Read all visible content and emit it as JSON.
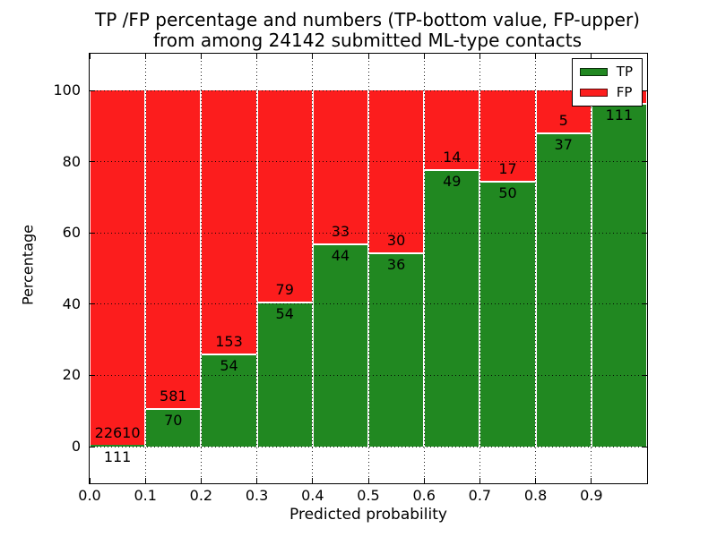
{
  "figure": {
    "title_line1": "TP /FP percentage and numbers (TP-bottom value, FP-upper)",
    "title_line2": "from among 24142 submitted ML-type contacts"
  },
  "chart_data": {
    "type": "bar",
    "stacked": true,
    "normalized_to_percent": true,
    "title": "TP /FP percentage and numbers (TP-bottom value, FP-upper) from among 24142 submitted ML-type contacts",
    "total_contacts_in_title": 24142,
    "xlabel": "Predicted probability",
    "ylabel": "Percentage",
    "bin_edges": [
      0.0,
      0.1,
      0.2,
      0.3,
      0.4,
      0.5,
      0.6,
      0.7,
      0.8,
      0.9,
      1.0
    ],
    "x_tick_labels": [
      "0.0",
      "0.1",
      "0.2",
      "0.3",
      "0.4",
      "0.5",
      "0.6",
      "0.7",
      "0.8",
      "0.9"
    ],
    "y_ticks": [
      0,
      20,
      40,
      60,
      80,
      100
    ],
    "y_tick_labels": [
      "0",
      "20",
      "40",
      "60",
      "80",
      "100"
    ],
    "xlim": [
      0.0,
      1.0
    ],
    "ylim_display": [
      -10.3,
      110.3
    ],
    "grid": "dotted",
    "series": [
      {
        "name": "TP",
        "counts": [
          111,
          70,
          54,
          54,
          44,
          36,
          49,
          50,
          37,
          111
        ]
      },
      {
        "name": "FP",
        "counts": [
          22610,
          581,
          153,
          79,
          33,
          30,
          14,
          17,
          5,
          null
        ]
      }
    ],
    "tp_percent": [
      0.49,
      10.75,
      26.09,
      40.6,
      57.14,
      54.55,
      77.78,
      74.63,
      88.1,
      96.5
    ],
    "bar_labels": {
      "fp": [
        "22610",
        "581",
        "153",
        "79",
        "33",
        "30",
        "14",
        "17",
        "5",
        ""
      ],
      "tp": [
        "111",
        "70",
        "54",
        "54",
        "44",
        "36",
        "49",
        "50",
        "37",
        "111"
      ]
    },
    "legend": {
      "position": "upper right",
      "entries": [
        {
          "label": "TP",
          "color": "#218821"
        },
        {
          "label": "FP",
          "color": "#fc1d1d"
        }
      ]
    }
  },
  "colors": {
    "tp": "#218821",
    "fp": "#fc1d1d",
    "bar_edge": "#ffffff",
    "grid": "#000000",
    "text": "#000000",
    "background": "#ffffff"
  }
}
